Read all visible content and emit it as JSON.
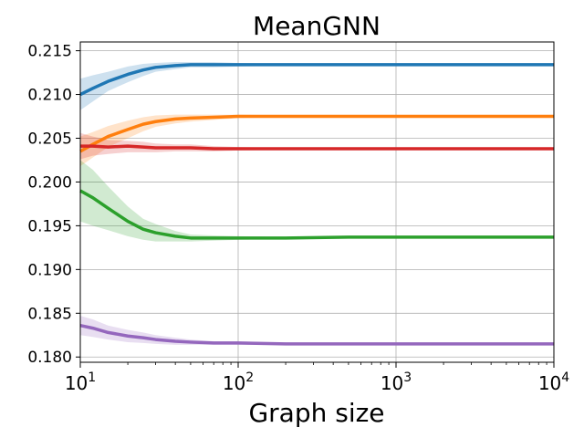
{
  "chart_data": {
    "type": "line",
    "title": "MeanGNN",
    "xlabel": "Graph size",
    "ylabel": "",
    "xscale": "log",
    "xlim": [
      10,
      10000
    ],
    "ylim": [
      0.1794,
      0.216
    ],
    "grid": true,
    "legend": "none",
    "x_ticks": [
      {
        "value": 10,
        "base": "10",
        "exp": "1"
      },
      {
        "value": 100,
        "base": "10",
        "exp": "2"
      },
      {
        "value": 1000,
        "base": "10",
        "exp": "3"
      },
      {
        "value": 10000,
        "base": "10",
        "exp": "4"
      }
    ],
    "y_ticks": [
      {
        "value": 0.18,
        "label": "0.180"
      },
      {
        "value": 0.185,
        "label": "0.185"
      },
      {
        "value": 0.19,
        "label": "0.190"
      },
      {
        "value": 0.195,
        "label": "0.195"
      },
      {
        "value": 0.2,
        "label": "0.200"
      },
      {
        "value": 0.205,
        "label": "0.205"
      },
      {
        "value": 0.21,
        "label": "0.210"
      },
      {
        "value": 0.215,
        "label": "0.215"
      }
    ],
    "series": [
      {
        "name": "blue",
        "color": "#1f77b4",
        "x": [
          10,
          12,
          15,
          20,
          25,
          30,
          40,
          50,
          70,
          100,
          200,
          500,
          1000,
          10000
        ],
        "y": [
          0.21,
          0.2107,
          0.2115,
          0.2123,
          0.2128,
          0.2131,
          0.2133,
          0.2134,
          0.2134,
          0.2134,
          0.2134,
          0.2134,
          0.2134,
          0.2134
        ],
        "y_low": [
          0.2082,
          0.2092,
          0.2104,
          0.2114,
          0.2121,
          0.2126,
          0.2129,
          0.2131,
          0.2131,
          0.2132,
          0.2133,
          0.2133,
          0.2134,
          0.2134
        ],
        "y_high": [
          0.2118,
          0.2122,
          0.2126,
          0.2132,
          0.2135,
          0.2136,
          0.2137,
          0.2137,
          0.2137,
          0.2136,
          0.2135,
          0.2135,
          0.2134,
          0.2134
        ]
      },
      {
        "name": "orange",
        "color": "#ff7f0e",
        "x": [
          10,
          12,
          15,
          20,
          25,
          30,
          40,
          50,
          70,
          100,
          200,
          500,
          1000,
          10000
        ],
        "y": [
          0.2035,
          0.2043,
          0.2052,
          0.206,
          0.2066,
          0.2069,
          0.2072,
          0.2073,
          0.2074,
          0.2075,
          0.2075,
          0.2075,
          0.2075,
          0.2075
        ],
        "y_low": [
          0.2018,
          0.2028,
          0.204,
          0.205,
          0.2058,
          0.2063,
          0.2067,
          0.2069,
          0.2071,
          0.2073,
          0.2074,
          0.2074,
          0.2075,
          0.2075
        ],
        "y_high": [
          0.2052,
          0.2057,
          0.2064,
          0.207,
          0.2074,
          0.2076,
          0.2077,
          0.2077,
          0.2077,
          0.2077,
          0.2076,
          0.2076,
          0.2075,
          0.2075
        ]
      },
      {
        "name": "red",
        "color": "#d62728",
        "x": [
          10,
          12,
          15,
          20,
          25,
          30,
          40,
          50,
          70,
          100,
          200,
          500,
          1000,
          10000
        ],
        "y": [
          0.2041,
          0.2041,
          0.204,
          0.2041,
          0.204,
          0.2039,
          0.2039,
          0.2039,
          0.2038,
          0.2038,
          0.2038,
          0.2038,
          0.2038,
          0.2038
        ],
        "y_low": [
          0.2026,
          0.203,
          0.2032,
          0.2034,
          0.2034,
          0.2034,
          0.2035,
          0.2035,
          0.2035,
          0.2036,
          0.2037,
          0.2037,
          0.2038,
          0.2038
        ],
        "y_high": [
          0.2056,
          0.2052,
          0.2048,
          0.2047,
          0.2046,
          0.2044,
          0.2043,
          0.2043,
          0.2041,
          0.204,
          0.2039,
          0.2039,
          0.2038,
          0.2038
        ]
      },
      {
        "name": "green",
        "color": "#2ca02c",
        "x": [
          10,
          12,
          15,
          20,
          25,
          30,
          40,
          50,
          70,
          100,
          200,
          500,
          1000,
          10000
        ],
        "y": [
          0.199,
          0.1982,
          0.197,
          0.1955,
          0.1946,
          0.1942,
          0.1938,
          0.1936,
          0.1936,
          0.1936,
          0.1936,
          0.1937,
          0.1937,
          0.1937
        ],
        "y_low": [
          0.1955,
          0.195,
          0.1945,
          0.1938,
          0.1934,
          0.1932,
          0.1932,
          0.1932,
          0.1933,
          0.1934,
          0.1935,
          0.1936,
          0.1937,
          0.1937
        ],
        "y_high": [
          0.2025,
          0.2014,
          0.1995,
          0.1972,
          0.1958,
          0.1952,
          0.1944,
          0.194,
          0.1939,
          0.1938,
          0.1937,
          0.1938,
          0.1937,
          0.1937
        ]
      },
      {
        "name": "purple",
        "color": "#9467bd",
        "x": [
          10,
          12,
          15,
          20,
          25,
          30,
          40,
          50,
          70,
          100,
          200,
          500,
          1000,
          10000
        ],
        "y": [
          0.1836,
          0.1833,
          0.1828,
          0.1824,
          0.1822,
          0.182,
          0.1818,
          0.1817,
          0.1816,
          0.1816,
          0.1815,
          0.1815,
          0.1815,
          0.1815
        ],
        "y_low": [
          0.1825,
          0.1823,
          0.182,
          0.1817,
          0.1816,
          0.1815,
          0.1814,
          0.1814,
          0.1814,
          0.1814,
          0.1814,
          0.1815,
          0.1815,
          0.1815
        ],
        "y_high": [
          0.1847,
          0.1843,
          0.1836,
          0.1831,
          0.1828,
          0.1825,
          0.1822,
          0.182,
          0.1818,
          0.1818,
          0.1816,
          0.1815,
          0.1815,
          0.1815
        ]
      }
    ]
  }
}
